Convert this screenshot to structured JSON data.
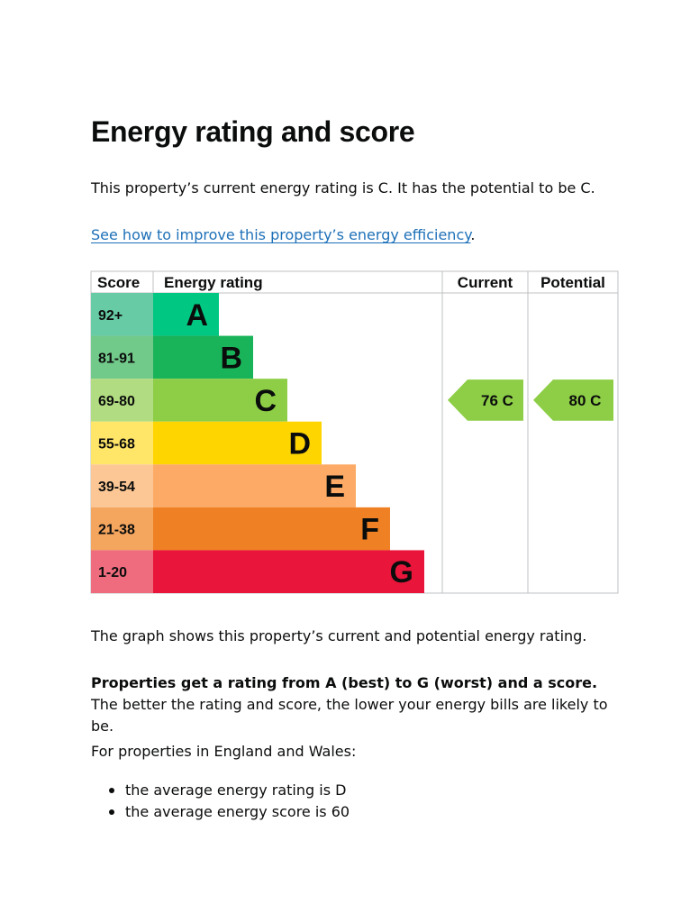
{
  "page": {
    "title": "Energy rating and score",
    "intro": "This property’s current energy rating is C. It has the potential to be C.",
    "link_text": "See how to improve this property’s energy efficiency",
    "link_suffix": ".",
    "graph_note": "The graph shows this property’s current and potential energy rating.",
    "rating_bold": "Properties get a rating from A (best) to G (worst) and a score.",
    "rating_rest": " The better the rating and score, the lower your energy bills are likely to be.",
    "region_intro": "For properties in England and Wales:",
    "bullets": [
      "the average energy rating is D",
      "the average energy score is 60"
    ]
  },
  "chart_data": {
    "type": "table",
    "headers": {
      "score": "Score",
      "rating": "Energy rating",
      "current": "Current",
      "potential": "Potential"
    },
    "bands": [
      {
        "letter": "A",
        "range": "92+",
        "bar_color": "#00c781",
        "score_color": "#67cba5"
      },
      {
        "letter": "B",
        "range": "81-91",
        "bar_color": "#19b459",
        "score_color": "#71c98a"
      },
      {
        "letter": "C",
        "range": "69-80",
        "bar_color": "#8dce46",
        "score_color": "#b1dc81"
      },
      {
        "letter": "D",
        "range": "55-68",
        "bar_color": "#ffd500",
        "score_color": "#ffe669"
      },
      {
        "letter": "E",
        "range": "39-54",
        "bar_color": "#fcaa65",
        "score_color": "#fcc795"
      },
      {
        "letter": "F",
        "range": "21-38",
        "bar_color": "#ef8023",
        "score_color": "#f4a55e"
      },
      {
        "letter": "G",
        "range": "1-20",
        "bar_color": "#e9153b",
        "score_color": "#ee6c7e"
      }
    ],
    "current": {
      "score": 76,
      "letter": "C",
      "color": "#8dce46"
    },
    "potential": {
      "score": 80,
      "letter": "C",
      "color": "#8dce46"
    }
  }
}
